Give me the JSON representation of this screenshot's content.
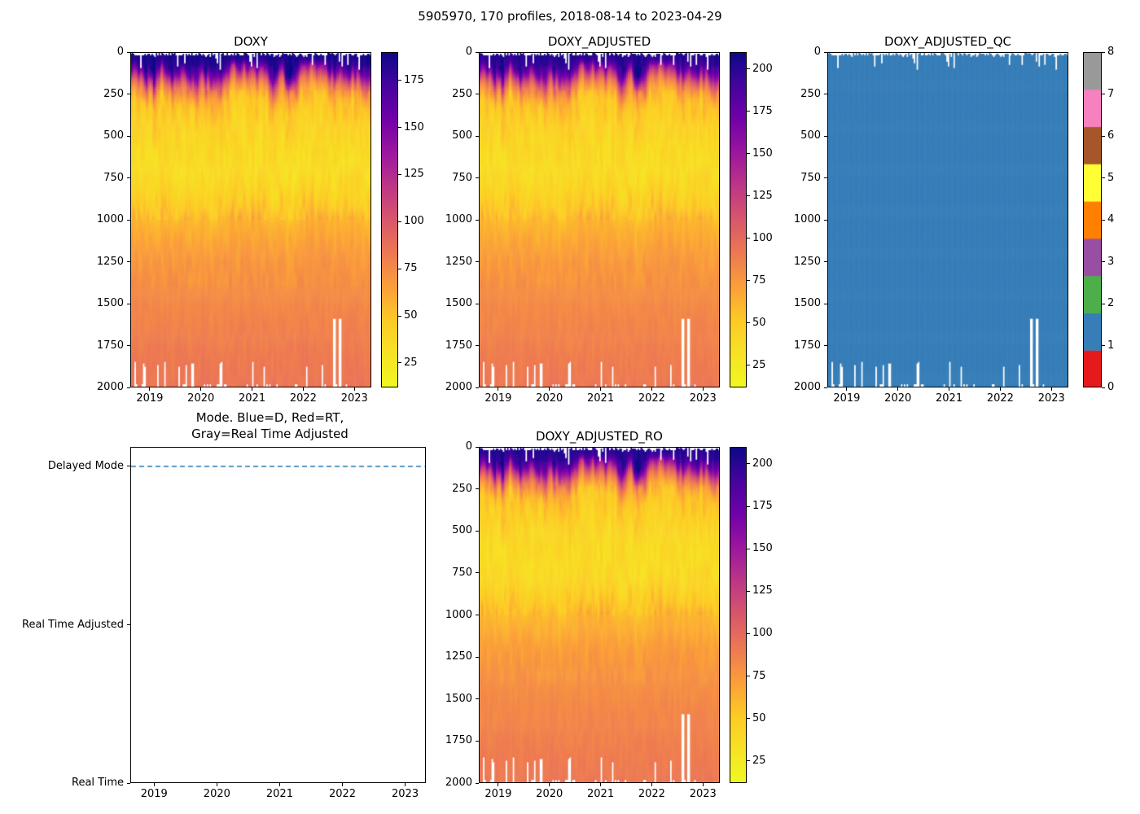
{
  "figure": {
    "title": "5905970, 170 profiles, 2018-08-14 to 2023-04-29"
  },
  "colors": {
    "plasma_stops": [
      "#0d0887",
      "#46039f",
      "#7201a8",
      "#9c179e",
      "#bd3786",
      "#d8576b",
      "#ed7953",
      "#fb9f3a",
      "#fdca26",
      "#f7e225",
      "#f0f921"
    ],
    "qc_set1": [
      "#e41a1c",
      "#377eb8",
      "#4daf4a",
      "#984ea3",
      "#ff7f00",
      "#ffff33",
      "#a65628",
      "#f781bf",
      "#999999"
    ],
    "mode_line": "#1f77b4",
    "missing_data": "#ffffff"
  },
  "chart_data": [
    {
      "type": "heatmap",
      "title": "DOXY",
      "n_profiles": 170,
      "x_tick_labels": [
        "2019",
        "2020",
        "2021",
        "2022",
        "2023"
      ],
      "x_range_years": [
        2018.62,
        2023.33
      ],
      "y_ticks_depth_m": [
        0,
        250,
        500,
        750,
        1000,
        1250,
        1500,
        1750,
        2000
      ],
      "y_range_m": [
        0,
        2000
      ],
      "y_inverted": true,
      "colorbar_ticks": [
        25,
        50,
        75,
        100,
        125,
        150,
        175
      ],
      "vmin": 12,
      "vmax": 190,
      "colormap": "plasma_reversed",
      "profile_depths_m": [
        0,
        40,
        80,
        120,
        160,
        200,
        250,
        300,
        400,
        500,
        600,
        700,
        800,
        900,
        1000,
        1200,
        1400,
        1600,
        1800,
        2000
      ],
      "profile_mean_values": [
        188,
        184,
        175,
        148,
        112,
        84,
        64,
        52,
        44,
        39,
        36,
        34,
        38,
        46,
        56,
        67,
        73,
        78,
        82,
        85
      ]
    },
    {
      "type": "heatmap",
      "title": "DOXY_ADJUSTED",
      "n_profiles": 170,
      "x_tick_labels": [
        "2019",
        "2020",
        "2021",
        "2022",
        "2023"
      ],
      "x_range_years": [
        2018.62,
        2023.33
      ],
      "y_ticks_depth_m": [
        0,
        250,
        500,
        750,
        1000,
        1250,
        1500,
        1750,
        2000
      ],
      "y_range_m": [
        0,
        2000
      ],
      "y_inverted": true,
      "colorbar_ticks": [
        25,
        50,
        75,
        100,
        125,
        150,
        175,
        200
      ],
      "vmin": 12,
      "vmax": 210,
      "colormap": "plasma_reversed",
      "profile_depths_m": [
        0,
        40,
        80,
        120,
        160,
        200,
        250,
        300,
        400,
        500,
        600,
        700,
        800,
        900,
        1000,
        1200,
        1400,
        1600,
        1800,
        2000
      ],
      "profile_mean_values": [
        204,
        199,
        190,
        160,
        121,
        91,
        69,
        56,
        48,
        42,
        39,
        37,
        41,
        50,
        60,
        72,
        79,
        84,
        88,
        92
      ]
    },
    {
      "type": "qc_heatmap",
      "title": "DOXY_ADJUSTED_QC",
      "n_profiles": 170,
      "x_tick_labels": [
        "2019",
        "2020",
        "2021",
        "2022",
        "2023"
      ],
      "x_range_years": [
        2018.62,
        2023.33
      ],
      "y_ticks_depth_m": [
        0,
        250,
        500,
        750,
        1000,
        1250,
        1500,
        1750,
        2000
      ],
      "y_range_m": [
        0,
        2000
      ],
      "y_inverted": true,
      "qc_value_all": 1,
      "colorbar_ticks": [
        0,
        1,
        2,
        3,
        4,
        5,
        6,
        7,
        8
      ]
    },
    {
      "type": "line",
      "title": "Mode. Blue=D, Red=RT,\nGray=Real Time Adjusted",
      "x_tick_labels": [
        "2019",
        "2020",
        "2021",
        "2022",
        "2023"
      ],
      "x_range_years": [
        2018.62,
        2023.33
      ],
      "y_categories": [
        "Delayed Mode",
        "Real Time Adjusted",
        "Real Time"
      ],
      "series": [
        {
          "name": "mode",
          "constant_value": "Delayed Mode",
          "line_style": "dashed",
          "color": "#1f77b4"
        }
      ]
    },
    {
      "type": "heatmap",
      "title": "DOXY_ADJUSTED_RO",
      "n_profiles": 170,
      "x_tick_labels": [
        "2019",
        "2020",
        "2021",
        "2022",
        "2023"
      ],
      "x_range_years": [
        2018.62,
        2023.33
      ],
      "y_ticks_depth_m": [
        0,
        250,
        500,
        750,
        1000,
        1250,
        1500,
        1750,
        2000
      ],
      "y_range_m": [
        0,
        2000
      ],
      "y_inverted": true,
      "colorbar_ticks": [
        25,
        50,
        75,
        100,
        125,
        150,
        175,
        200
      ],
      "vmin": 12,
      "vmax": 210,
      "colormap": "plasma_reversed",
      "profile_depths_m": [
        0,
        40,
        80,
        120,
        160,
        200,
        250,
        300,
        400,
        500,
        600,
        700,
        800,
        900,
        1000,
        1200,
        1400,
        1600,
        1800,
        2000
      ],
      "profile_mean_values": [
        204,
        199,
        190,
        160,
        121,
        91,
        69,
        56,
        48,
        42,
        39,
        37,
        41,
        50,
        60,
        72,
        79,
        84,
        88,
        92
      ]
    }
  ]
}
